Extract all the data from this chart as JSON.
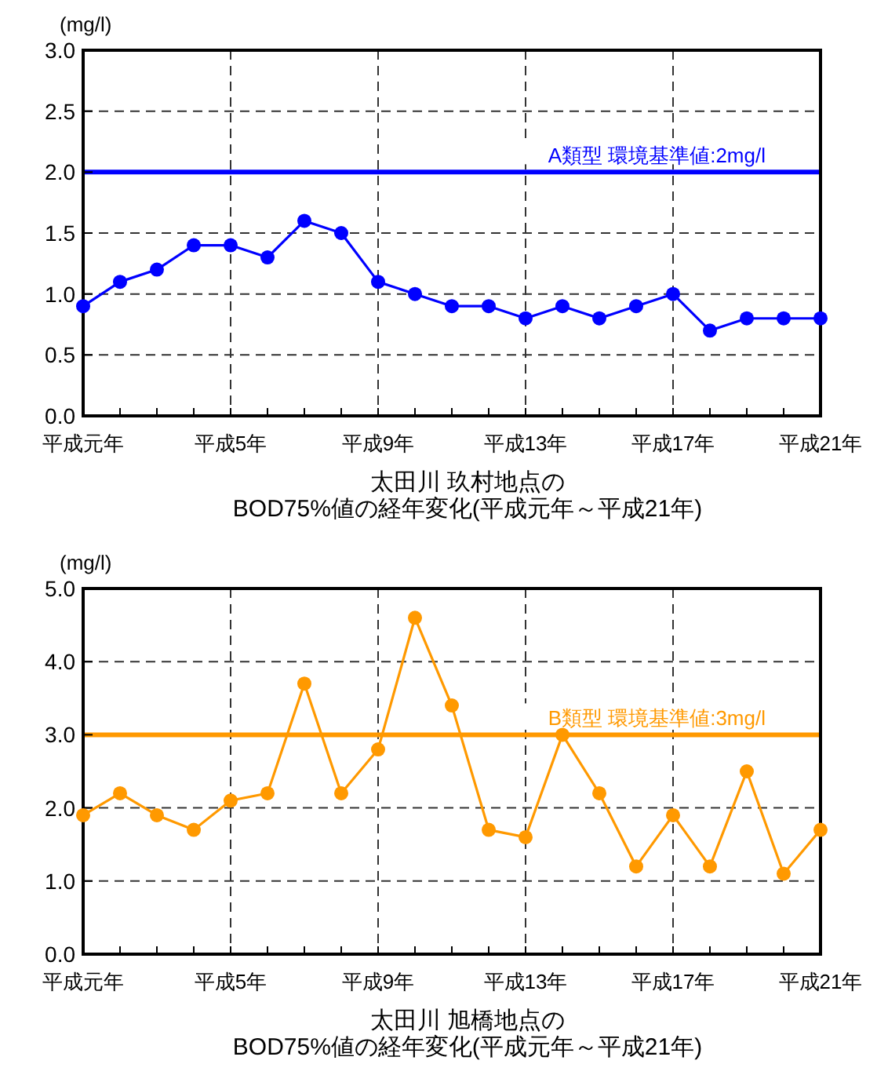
{
  "chart_data": [
    {
      "type": "line",
      "title": "太田川 玖村地点の\nBOD75%値の経年変化(平成元年～平成21年)",
      "ylabel": "(mg/l)",
      "categories": [
        "平成元年",
        null,
        null,
        null,
        "平成5年",
        null,
        null,
        null,
        "平成9年",
        null,
        null,
        null,
        "平成13年",
        null,
        null,
        null,
        "平成17年",
        null,
        null,
        null,
        "平成21年"
      ],
      "series": [
        {
          "color": "#0000ff",
          "values": [
            0.9,
            1.1,
            1.2,
            1.4,
            1.4,
            1.3,
            1.6,
            1.5,
            1.1,
            1.0,
            0.9,
            0.9,
            0.8,
            0.9,
            0.8,
            0.9,
            1.0,
            0.7,
            0.8,
            0.8,
            0.8
          ]
        }
      ],
      "ylim": [
        0,
        3
      ],
      "yticks": [
        {
          "value": 0,
          "label": "0.0"
        },
        {
          "value": 0.5,
          "label": "0.5"
        },
        {
          "value": 1,
          "label": "1.0"
        },
        {
          "value": 1.5,
          "label": "1.5"
        },
        {
          "value": 2,
          "label": "2.0"
        },
        {
          "value": 2.5,
          "label": "2.5"
        },
        {
          "value": 3,
          "label": "3.0"
        }
      ],
      "ref_lines": [
        {
          "axis": "y",
          "value": 2,
          "label": "A類型  環境基準値:2mg/l",
          "color": "#0000ff"
        }
      ],
      "grid": true,
      "marker": "circle"
    },
    {
      "type": "line",
      "title": "太田川 旭橋地点の\nBOD75%値の経年変化(平成元年～平成21年)",
      "ylabel": "(mg/l)",
      "categories": [
        "平成元年",
        null,
        null,
        null,
        "平成5年",
        null,
        null,
        null,
        "平成9年",
        null,
        null,
        null,
        "平成13年",
        null,
        null,
        null,
        "平成17年",
        null,
        null,
        null,
        "平成21年"
      ],
      "series": [
        {
          "color": "#ff9900",
          "values": [
            1.9,
            2.2,
            1.9,
            1.7,
            2.1,
            2.2,
            3.7,
            2.2,
            2.8,
            4.6,
            3.4,
            1.7,
            1.6,
            3.0,
            2.2,
            1.2,
            1.9,
            1.2,
            2.5,
            1.1,
            1.7
          ]
        }
      ],
      "ylim": [
        0,
        5
      ],
      "yticks": [
        {
          "value": 0,
          "label": "0.0"
        },
        {
          "value": 1,
          "label": "1.0"
        },
        {
          "value": 2,
          "label": "2.0"
        },
        {
          "value": 3,
          "label": "3.0"
        },
        {
          "value": 4,
          "label": "4.0"
        },
        {
          "value": 5,
          "label": "5.0"
        }
      ],
      "ref_lines": [
        {
          "axis": "y",
          "value": 3,
          "label": "B類型  環境基準値:3mg/l",
          "color": "#ff9900"
        }
      ],
      "grid": true,
      "marker": "circle"
    }
  ]
}
